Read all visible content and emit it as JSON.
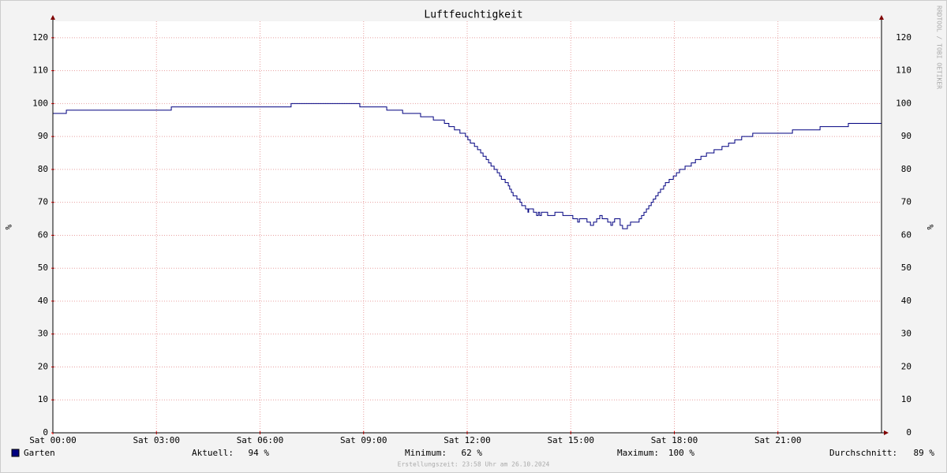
{
  "chart_data": {
    "type": "line",
    "title": "Luftfeuchtigkeit",
    "y_label": "%",
    "watermark": "RRDTOOL / TOBI OETIKER",
    "footer": "Erstellungszeit: 23:58 Uhr am 26.10.2024",
    "xlim": [
      0,
      24
    ],
    "xticks": [
      {
        "value": 0,
        "label": "Sat 00:00"
      },
      {
        "value": 3,
        "label": "Sat 03:00"
      },
      {
        "value": 6,
        "label": "Sat 06:00"
      },
      {
        "value": 9,
        "label": "Sat 09:00"
      },
      {
        "value": 12,
        "label": "Sat 12:00"
      },
      {
        "value": 15,
        "label": "Sat 15:00"
      },
      {
        "value": 18,
        "label": "Sat 18:00"
      },
      {
        "value": 21,
        "label": "Sat 21:00"
      }
    ],
    "ylim": [
      0,
      125
    ],
    "yticks": [
      0,
      10,
      20,
      30,
      40,
      50,
      60,
      70,
      80,
      90,
      100,
      110,
      120
    ],
    "grid": true,
    "step": true,
    "x": [
      0,
      0.39,
      3.43,
      6.9,
      8.89,
      9.67,
      10.13,
      10.65,
      11.02,
      11.34,
      11.47,
      11.63,
      11.79,
      11.95,
      12.02,
      12.09,
      12.21,
      12.3,
      12.39,
      12.46,
      12.55,
      12.62,
      12.69,
      12.78,
      12.87,
      12.94,
      12.99,
      13.1,
      13.19,
      13.23,
      13.28,
      13.33,
      13.44,
      13.53,
      13.58,
      13.69,
      13.76,
      13.78,
      13.92,
      14.01,
      14.06,
      14.1,
      14.15,
      14.33,
      14.54,
      14.77,
      15.06,
      15.2,
      15.25,
      15.47,
      15.57,
      15.66,
      15.75,
      15.84,
      15.91,
      16.07,
      16.16,
      16.21,
      16.27,
      16.43,
      16.5,
      16.64,
      16.73,
      16.98,
      17.05,
      17.12,
      17.19,
      17.26,
      17.33,
      17.39,
      17.46,
      17.53,
      17.6,
      17.69,
      17.74,
      17.85,
      17.97,
      18.06,
      18.15,
      18.31,
      18.49,
      18.61,
      18.77,
      18.93,
      19.15,
      19.38,
      19.57,
      19.75,
      19.95,
      20.27,
      21.42,
      22.22,
      23.04,
      24
    ],
    "series": [
      {
        "name": "Garten",
        "color": "#000080",
        "values": [
          97,
          98,
          99,
          100,
          99,
          98,
          97,
          96,
          95,
          94,
          93,
          92,
          91,
          90,
          89,
          88,
          87,
          86,
          85,
          84,
          83,
          82,
          81,
          80,
          79,
          78,
          77,
          76,
          75,
          74,
          73,
          72,
          71,
          70,
          69,
          68,
          67,
          68,
          67,
          66,
          67,
          66,
          67,
          66,
          67,
          66,
          65,
          64,
          65,
          64,
          63,
          64,
          65,
          66,
          65,
          64,
          63,
          64,
          65,
          63,
          62,
          63,
          64,
          65,
          66,
          67,
          68,
          69,
          70,
          71,
          72,
          73,
          74,
          75,
          76,
          77,
          78,
          79,
          80,
          81,
          82,
          83,
          84,
          85,
          86,
          87,
          88,
          89,
          90,
          91,
          92,
          93,
          94,
          94
        ]
      }
    ],
    "stats": [
      {
        "label": "Aktuell:",
        "value": "94 %"
      },
      {
        "label": "Minimum:",
        "value": "62 %"
      },
      {
        "label": "Maximum:",
        "value": "100 %"
      },
      {
        "label": "Durchschnitt:",
        "value": "89 %"
      }
    ]
  }
}
